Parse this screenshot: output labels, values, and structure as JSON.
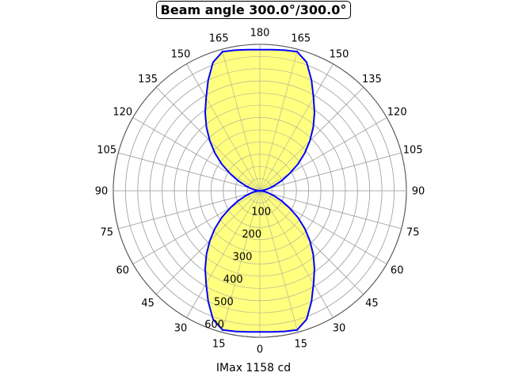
{
  "chart_data": {
    "type": "polar-area",
    "title": "Beam angle 300.0°/300.0°",
    "xlabel": "IMax 1158 cd",
    "angle_tick_labels": [
      "0",
      "15",
      "30",
      "45",
      "60",
      "75",
      "90",
      "105",
      "120",
      "135",
      "150",
      "165",
      "180",
      "165",
      "150",
      "135",
      "120",
      "105",
      "90",
      "75",
      "60",
      "45",
      "30",
      "15"
    ],
    "radial_tick_labels": [
      "100",
      "200",
      "300",
      "400",
      "500",
      "600"
    ],
    "rlim": [
      0,
      600
    ],
    "grid": true,
    "series": [
      {
        "angles_deg": [
          0,
          5,
          10,
          15,
          20,
          25,
          30,
          35,
          40,
          45,
          50,
          55,
          60,
          65,
          70,
          75,
          80,
          85,
          90
        ],
        "values": [
          578,
          580,
          585,
          590,
          560,
          500,
          440,
          390,
          340,
          290,
          240,
          190,
          140,
          100,
          65,
          40,
          20,
          8,
          0
        ],
        "fill": "#ffff80",
        "stroke": "#0000ff"
      }
    ]
  }
}
